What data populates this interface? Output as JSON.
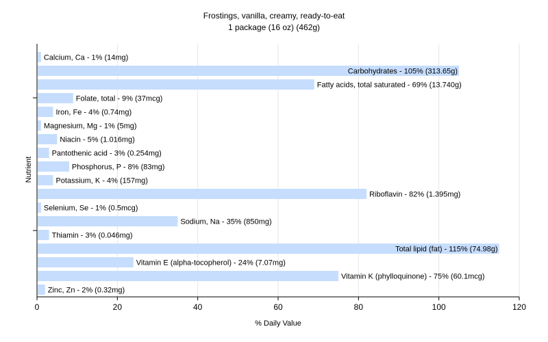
{
  "chart_data": {
    "type": "bar",
    "orientation": "horizontal",
    "title": "Frostings, vanilla, creamy, ready-to-eat",
    "subtitle": "1 package (16 oz) (462g)",
    "xlabel": "% Daily Value",
    "ylabel": "Nutrient",
    "xlim": [
      0,
      120
    ],
    "xticks": [
      "0",
      "20",
      "40",
      "60",
      "80",
      "100",
      "120"
    ],
    "grid": true,
    "bar_color": "#c6ddfd",
    "categories": [
      "Calcium, Ca",
      "Carbohydrates",
      "Fatty acids, total saturated",
      "Folate, total",
      "Iron, Fe",
      "Magnesium, Mg",
      "Niacin",
      "Pantothenic acid",
      "Phosphorus, P",
      "Potassium, K",
      "Riboflavin",
      "Selenium, Se",
      "Sodium, Na",
      "Thiamin",
      "Total lipid (fat)",
      "Vitamin E (alpha-tocopherol)",
      "Vitamin K (phylloquinone)",
      "Zinc, Zn"
    ],
    "values": [
      1,
      105,
      69,
      9,
      4,
      1,
      5,
      3,
      8,
      4,
      82,
      1,
      35,
      3,
      115,
      24,
      75,
      2
    ],
    "labels": [
      "Calcium, Ca - 1% (14mg)",
      "Carbohydrates - 105% (313.65g)",
      "Fatty acids, total saturated - 69% (13.740g)",
      "Folate, total - 9% (37mcg)",
      "Iron, Fe - 4% (0.74mg)",
      "Magnesium, Mg - 1% (5mg)",
      "Niacin - 5% (1.016mg)",
      "Pantothenic acid - 3% (0.254mg)",
      "Phosphorus, P - 8% (83mg)",
      "Potassium, K - 4% (157mg)",
      "Riboflavin - 82% (1.395mg)",
      "Selenium, Se - 1% (0.5mcg)",
      "Sodium, Na - 35% (850mg)",
      "Thiamin - 3% (0.046mg)",
      "Total lipid (fat) - 115% (74.98g)",
      "Vitamin E (alpha-tocopherol) - 24% (7.07mg)",
      "Vitamin K (phylloquinone) - 75% (60.1mcg)",
      "Zinc, Zn - 2% (0.32mg)"
    ]
  }
}
